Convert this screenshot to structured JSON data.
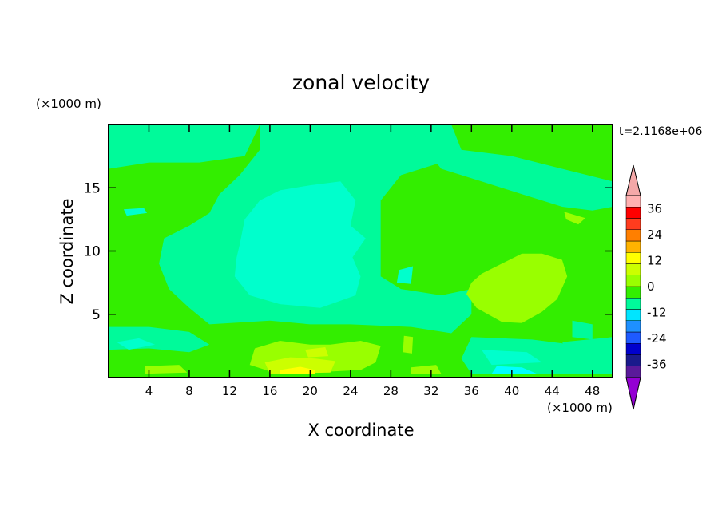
{
  "chart_data": {
    "type": "heatmap",
    "title": "zonal velocity",
    "xlabel": "X coordinate",
    "ylabel": "Z coordinate",
    "x_unit": "(×1000 m)",
    "y_unit": "(×1000 m)",
    "time_label": "t=2.1168e+06",
    "xlim": [
      0,
      50
    ],
    "ylim": [
      0,
      20
    ],
    "x_ticks": [
      4,
      8,
      12,
      16,
      20,
      24,
      28,
      32,
      36,
      40,
      44,
      48
    ],
    "y_ticks": [
      5,
      10,
      15
    ],
    "colorbar": {
      "levels": [
        -42,
        -36,
        -30,
        -24,
        -18,
        -12,
        -6,
        0,
        6,
        12,
        18,
        24,
        30,
        36,
        42
      ],
      "tick_values": [
        -36,
        -24,
        -12,
        0,
        12,
        24,
        36
      ],
      "tick_labels": [
        "-36",
        "-24",
        "-12",
        "0",
        "12",
        "24",
        "36"
      ],
      "colors": [
        "#5a1a9a",
        "#1a1a8c",
        "#0000cd",
        "#1e5aff",
        "#1e90ff",
        "#00e5ff",
        "#00fa9a",
        "#33ee00",
        "#99ff00",
        "#ccff00",
        "#ffff00",
        "#ffb300",
        "#ff7f00",
        "#ff3c1e",
        "#ff0000",
        "#ffb0b0"
      ],
      "under_color": "#9400d3",
      "over_color": "#f4a8a8"
    },
    "field_colors": {
      "strong_negative": "#00ffff",
      "negative": "#00ffcc",
      "near_zero_negative": "#00fa9a",
      "near_zero_positive": "#33ee00",
      "positive": "#99ff00",
      "strong_positive": "#ccff00",
      "peak_positive": "#ffff00"
    },
    "regions": [
      {
        "level": "near_zero_positive",
        "points": [
          [
            0,
            0
          ],
          [
            50,
            0
          ],
          [
            50,
            20
          ],
          [
            0,
            20
          ]
        ]
      },
      {
        "level": "near_zero_negative",
        "points": [
          [
            15,
            20
          ],
          [
            34,
            20
          ],
          [
            33,
            17
          ],
          [
            29,
            16
          ],
          [
            27,
            14
          ],
          [
            27,
            8
          ],
          [
            29,
            7
          ],
          [
            33,
            6.5
          ],
          [
            36,
            7
          ],
          [
            36,
            5
          ],
          [
            34,
            3.5
          ],
          [
            30,
            4
          ],
          [
            24,
            4.2
          ],
          [
            20,
            4.2
          ],
          [
            16,
            4.5
          ],
          [
            10,
            4.2
          ],
          [
            8,
            5.5
          ],
          [
            6,
            7
          ],
          [
            5,
            9
          ],
          [
            5.5,
            11
          ],
          [
            8,
            12
          ],
          [
            10,
            13
          ],
          [
            11,
            14.5
          ],
          [
            13,
            16
          ],
          [
            15,
            18
          ]
        ]
      },
      {
        "level": "near_zero_negative",
        "points": [
          [
            29.5,
            20
          ],
          [
            34,
            20
          ],
          [
            35,
            18
          ],
          [
            40,
            17.5
          ],
          [
            45,
            16.5
          ],
          [
            50,
            15.5
          ],
          [
            50,
            13.5
          ],
          [
            48,
            13.2
          ],
          [
            45,
            13.5
          ],
          [
            41,
            14.5
          ],
          [
            37,
            15.5
          ],
          [
            33,
            16.5
          ]
        ]
      },
      {
        "level": "near_zero_negative",
        "points": [
          [
            0,
            20
          ],
          [
            15,
            20
          ],
          [
            13.5,
            17.5
          ],
          [
            9,
            17
          ],
          [
            4,
            17
          ],
          [
            0,
            16.5
          ]
        ]
      },
      {
        "level": "near_zero_negative",
        "points": [
          [
            36,
            3.2
          ],
          [
            42,
            3
          ],
          [
            47,
            2.5
          ],
          [
            50,
            2.7
          ],
          [
            50,
            0.3
          ],
          [
            36,
            0.3
          ],
          [
            35,
            1.5
          ]
        ]
      },
      {
        "level": "near_zero_negative",
        "points": [
          [
            0,
            4
          ],
          [
            4,
            4
          ],
          [
            8,
            3.6
          ],
          [
            10,
            2.6
          ],
          [
            8,
            2
          ],
          [
            4,
            2.3
          ],
          [
            0,
            2.2
          ]
        ]
      },
      {
        "level": "near_zero_negative",
        "points": [
          [
            45,
            2.8
          ],
          [
            50,
            3.2
          ],
          [
            50,
            1.5
          ],
          [
            46,
            1.5
          ]
        ]
      },
      {
        "level": "near_zero_negative",
        "points": [
          [
            46,
            4.5
          ],
          [
            48,
            4.2
          ],
          [
            48,
            3
          ],
          [
            46,
            3.2
          ]
        ]
      },
      {
        "level": "negative",
        "points": [
          [
            13,
            10.5
          ],
          [
            13.5,
            12.5
          ],
          [
            15,
            14
          ],
          [
            17,
            14.8
          ],
          [
            20,
            15.2
          ],
          [
            23,
            15.5
          ],
          [
            24.5,
            14
          ],
          [
            24,
            12
          ],
          [
            25.5,
            11
          ],
          [
            24.2,
            9.5
          ],
          [
            25,
            8
          ],
          [
            24.5,
            6.5
          ],
          [
            21,
            5.5
          ],
          [
            17,
            5.8
          ],
          [
            14,
            6.5
          ],
          [
            12.5,
            8
          ],
          [
            12.7,
            9.5
          ]
        ]
      },
      {
        "level": "negative",
        "points": [
          [
            28.8,
            8.5
          ],
          [
            30.2,
            8.8
          ],
          [
            30,
            7.4
          ],
          [
            28.6,
            7.5
          ]
        ]
      },
      {
        "level": "negative",
        "points": [
          [
            37,
            2.2
          ],
          [
            41.5,
            2
          ],
          [
            43,
            1.2
          ],
          [
            38,
            1
          ]
        ]
      },
      {
        "level": "negative",
        "points": [
          [
            0.8,
            2.8
          ],
          [
            3,
            3.1
          ],
          [
            4.6,
            2.6
          ],
          [
            2,
            2.2
          ]
        ]
      },
      {
        "level": "negative",
        "points": [
          [
            1.5,
            13.3
          ],
          [
            3.5,
            13.4
          ],
          [
            3.8,
            13
          ],
          [
            1.8,
            12.8
          ]
        ]
      },
      {
        "level": "strong_negative",
        "points": [
          [
            38.5,
            0.9
          ],
          [
            41,
            0.8
          ],
          [
            42.5,
            0.3
          ],
          [
            38,
            0.3
          ]
        ]
      },
      {
        "level": "positive",
        "points": [
          [
            36,
            7.5
          ],
          [
            37,
            8.2
          ],
          [
            39,
            9
          ],
          [
            41,
            9.8
          ],
          [
            43,
            9.8
          ],
          [
            45,
            9.3
          ],
          [
            45.5,
            8
          ],
          [
            44.5,
            6.2
          ],
          [
            43,
            5.2
          ],
          [
            41,
            4.3
          ],
          [
            39,
            4.4
          ],
          [
            36.5,
            5.5
          ],
          [
            35.5,
            6.6
          ]
        ]
      },
      {
        "level": "positive",
        "points": [
          [
            14.5,
            2.3
          ],
          [
            17,
            2.9
          ],
          [
            20,
            2.6
          ],
          [
            22,
            2.6
          ],
          [
            25,
            2.9
          ],
          [
            27,
            2.5
          ],
          [
            26.5,
            1.2
          ],
          [
            25,
            0.6
          ],
          [
            20,
            0.4
          ],
          [
            16,
            0.5
          ],
          [
            14,
            1
          ]
        ]
      },
      {
        "level": "positive",
        "points": [
          [
            29.3,
            3.3
          ],
          [
            30.2,
            3.2
          ],
          [
            30.1,
            1.9
          ],
          [
            29.2,
            2
          ]
        ]
      },
      {
        "level": "positive",
        "points": [
          [
            45.2,
            13.1
          ],
          [
            47.3,
            12.6
          ],
          [
            46.6,
            12.1
          ],
          [
            45.4,
            12.5
          ]
        ]
      },
      {
        "level": "positive",
        "points": [
          [
            3.6,
            0.9
          ],
          [
            7,
            1
          ],
          [
            7.8,
            0.4
          ],
          [
            3.6,
            0.3
          ]
        ]
      },
      {
        "level": "positive",
        "points": [
          [
            30,
            0.8
          ],
          [
            32.5,
            1
          ],
          [
            33,
            0.3
          ],
          [
            30,
            0.3
          ]
        ]
      },
      {
        "level": "strong_positive",
        "points": [
          [
            15.5,
            1.2
          ],
          [
            18,
            1.6
          ],
          [
            20.5,
            1.5
          ],
          [
            22.5,
            1.3
          ],
          [
            22,
            0.4
          ],
          [
            16,
            0.3
          ]
        ]
      },
      {
        "level": "strong_positive",
        "points": [
          [
            19.5,
            2.2
          ],
          [
            21.5,
            2.4
          ],
          [
            21.8,
            1.7
          ],
          [
            19.8,
            1.6
          ]
        ]
      },
      {
        "level": "peak_positive",
        "points": [
          [
            17,
            0.6
          ],
          [
            19,
            0.85
          ],
          [
            20.5,
            0.6
          ],
          [
            20.5,
            0.3
          ],
          [
            17,
            0.3
          ]
        ]
      }
    ]
  }
}
